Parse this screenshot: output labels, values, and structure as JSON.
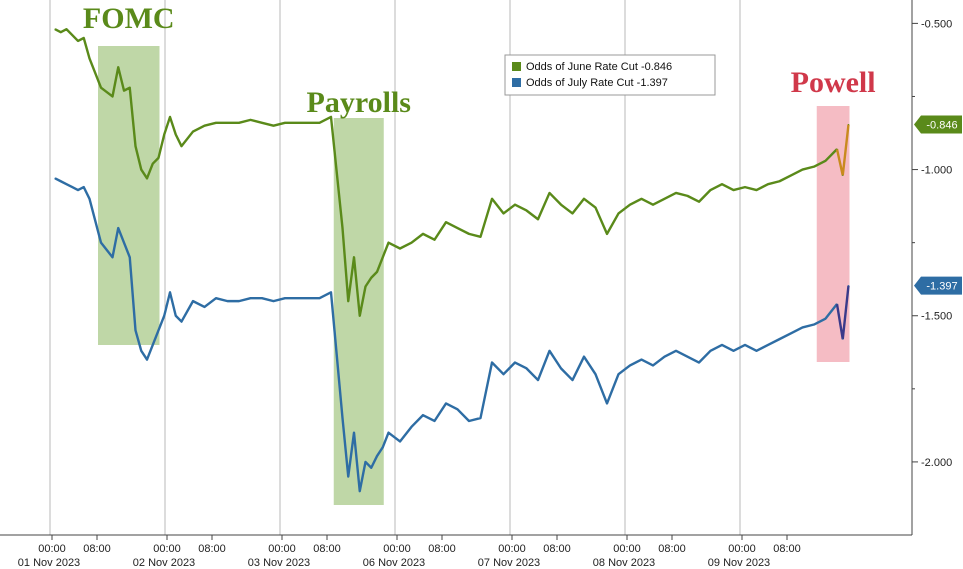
{
  "chart_data": {
    "type": "line",
    "title": "",
    "xlabel": "",
    "ylabel": "",
    "ylim": [
      -2.25,
      -0.42
    ],
    "y_ticks": [
      -0.5,
      -1.0,
      -1.5,
      -2.0
    ],
    "y_tick_labels": [
      "-0.500",
      "-1.000",
      "-1.500",
      "-2.000"
    ],
    "x_tick_labels": [
      {
        "time": "00:00",
        "date": "01 Nov 2023"
      },
      {
        "time": "08:00",
        "date": ""
      },
      {
        "time": "00:00",
        "date": "02 Nov 2023"
      },
      {
        "time": "08:00",
        "date": ""
      },
      {
        "time": "00:00",
        "date": "03 Nov 2023"
      },
      {
        "time": "08:00",
        "date": ""
      },
      {
        "time": "00:00",
        "date": "06 Nov 2023"
      },
      {
        "time": "08:00",
        "date": ""
      },
      {
        "time": "00:00",
        "date": "07 Nov 2023"
      },
      {
        "time": "08:00",
        "date": ""
      },
      {
        "time": "00:00",
        "date": "08 Nov 2023"
      },
      {
        "time": "08:00",
        "date": ""
      },
      {
        "time": "00:00",
        "date": "09 Nov 2023"
      },
      {
        "time": "08:00",
        "date": ""
      }
    ],
    "grid": true,
    "legend_position": "top-center",
    "series": [
      {
        "name": "Odds of June Rate Cut",
        "last_value": "-0.846",
        "color": "#5a8a1a",
        "highlight_color": "#c98a1e",
        "x": [
          0,
          0.05,
          0.1,
          0.15,
          0.2,
          0.25,
          0.3,
          0.4,
          0.5,
          0.55,
          0.6,
          0.65,
          0.7,
          0.75,
          0.8,
          0.85,
          0.9,
          0.95,
          1.0,
          1.05,
          1.1,
          1.2,
          1.3,
          1.4,
          1.5,
          1.6,
          1.7,
          1.8,
          1.9,
          2.0,
          2.1,
          2.2,
          2.3,
          2.4,
          2.5,
          2.55,
          2.6,
          2.65,
          2.7,
          2.75,
          2.8,
          2.85,
          2.9,
          3.0,
          3.1,
          3.2,
          3.3,
          3.4,
          3.5,
          3.6,
          3.7,
          3.8,
          3.9,
          4.0,
          4.1,
          4.2,
          4.3,
          4.4,
          4.5,
          4.6,
          4.7,
          4.8,
          4.9,
          5.0,
          5.1,
          5.2,
          5.3,
          5.4,
          5.5,
          5.6,
          5.7,
          5.8,
          5.9,
          6.0,
          6.1,
          6.2,
          6.3,
          6.4,
          6.5,
          6.6,
          6.7,
          6.8,
          6.85,
          6.9
        ],
        "y": [
          -0.52,
          -0.53,
          -0.52,
          -0.54,
          -0.56,
          -0.55,
          -0.62,
          -0.72,
          -0.75,
          -0.65,
          -0.73,
          -0.72,
          -0.92,
          -1.0,
          -1.03,
          -0.98,
          -0.96,
          -0.88,
          -0.82,
          -0.88,
          -0.92,
          -0.87,
          -0.85,
          -0.84,
          -0.84,
          -0.84,
          -0.83,
          -0.84,
          -0.85,
          -0.84,
          -0.84,
          -0.84,
          -0.84,
          -0.82,
          -1.2,
          -1.45,
          -1.3,
          -1.5,
          -1.4,
          -1.37,
          -1.35,
          -1.3,
          -1.25,
          -1.27,
          -1.25,
          -1.22,
          -1.24,
          -1.18,
          -1.2,
          -1.22,
          -1.23,
          -1.1,
          -1.15,
          -1.12,
          -1.14,
          -1.17,
          -1.08,
          -1.12,
          -1.15,
          -1.1,
          -1.13,
          -1.22,
          -1.15,
          -1.12,
          -1.1,
          -1.12,
          -1.1,
          -1.08,
          -1.09,
          -1.11,
          -1.07,
          -1.05,
          -1.07,
          -1.06,
          -1.07,
          -1.05,
          -1.04,
          -1.02,
          -1.0,
          -0.99,
          -0.97,
          -0.93,
          -1.02,
          -0.846
        ]
      },
      {
        "name": "Odds of July Rate Cut",
        "last_value": "-1.397",
        "color": "#2e6da4",
        "highlight_color": "#3a3a8a",
        "x": [
          0,
          0.05,
          0.1,
          0.15,
          0.2,
          0.25,
          0.3,
          0.4,
          0.5,
          0.55,
          0.6,
          0.65,
          0.7,
          0.75,
          0.8,
          0.85,
          0.9,
          0.95,
          1.0,
          1.05,
          1.1,
          1.2,
          1.3,
          1.4,
          1.5,
          1.6,
          1.7,
          1.8,
          1.9,
          2.0,
          2.1,
          2.2,
          2.3,
          2.4,
          2.5,
          2.55,
          2.6,
          2.65,
          2.7,
          2.75,
          2.8,
          2.85,
          2.9,
          3.0,
          3.1,
          3.2,
          3.3,
          3.4,
          3.5,
          3.6,
          3.7,
          3.8,
          3.9,
          4.0,
          4.1,
          4.2,
          4.3,
          4.4,
          4.5,
          4.6,
          4.7,
          4.8,
          4.9,
          5.0,
          5.1,
          5.2,
          5.3,
          5.4,
          5.5,
          5.6,
          5.7,
          5.8,
          5.9,
          6.0,
          6.1,
          6.2,
          6.3,
          6.4,
          6.5,
          6.6,
          6.7,
          6.8,
          6.85,
          6.9
        ],
        "y": [
          -1.03,
          -1.04,
          -1.05,
          -1.06,
          -1.07,
          -1.06,
          -1.1,
          -1.25,
          -1.3,
          -1.2,
          -1.25,
          -1.3,
          -1.55,
          -1.62,
          -1.65,
          -1.6,
          -1.55,
          -1.5,
          -1.42,
          -1.5,
          -1.52,
          -1.45,
          -1.47,
          -1.44,
          -1.45,
          -1.45,
          -1.44,
          -1.44,
          -1.45,
          -1.44,
          -1.44,
          -1.44,
          -1.44,
          -1.42,
          -1.85,
          -2.05,
          -1.9,
          -2.1,
          -2.0,
          -2.02,
          -1.98,
          -1.95,
          -1.9,
          -1.93,
          -1.88,
          -1.84,
          -1.86,
          -1.8,
          -1.82,
          -1.86,
          -1.85,
          -1.66,
          -1.7,
          -1.66,
          -1.68,
          -1.72,
          -1.62,
          -1.68,
          -1.72,
          -1.64,
          -1.7,
          -1.8,
          -1.7,
          -1.67,
          -1.65,
          -1.67,
          -1.64,
          -1.62,
          -1.64,
          -1.66,
          -1.62,
          -1.6,
          -1.62,
          -1.6,
          -1.62,
          -1.6,
          -1.58,
          -1.56,
          -1.54,
          -1.53,
          -1.51,
          -1.46,
          -1.58,
          -1.397
        ]
      }
    ],
    "annotations": [
      {
        "text": "FOMC",
        "color": "#5a8a1a",
        "shade": "#a9c98a",
        "x_start": 0.4,
        "x_end": 0.9
      },
      {
        "text": "Payrolls",
        "color": "#5a8a1a",
        "shade": "#a9c98a",
        "x_start": 2.45,
        "x_end": 2.85
      },
      {
        "text": "Powell",
        "color": "#d0384a",
        "shade": "#f2a5b0",
        "x_start": 6.65,
        "x_end": 6.9
      }
    ]
  }
}
